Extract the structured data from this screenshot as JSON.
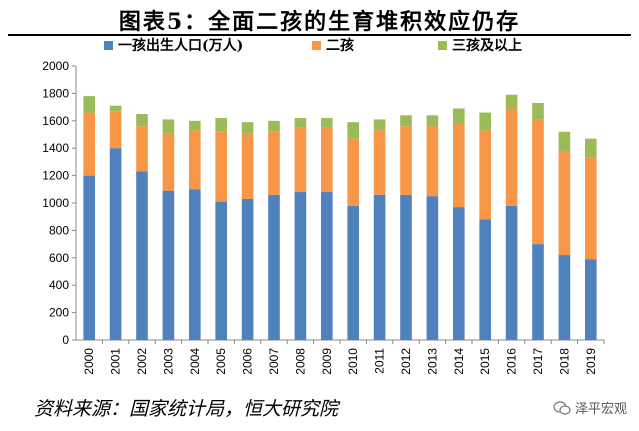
{
  "title": "图表5：全面二孩的生育堆积效应仍存",
  "source": "资料来源：国家统计局，恒大研究院",
  "watermark": "泽平宏观",
  "colors": {
    "first": "#4f81bd",
    "second": "#f79646",
    "third": "#9bbb59"
  },
  "chart_data": {
    "type": "bar",
    "stacked": true,
    "categories": [
      "2000",
      "2001",
      "2002",
      "2003",
      "2004",
      "2005",
      "2006",
      "2007",
      "2008",
      "2009",
      "2010",
      "2011",
      "2012",
      "2013",
      "2014",
      "2015",
      "2016",
      "2017",
      "2018",
      "2019"
    ],
    "series": [
      {
        "name": "一孩出生人口(万人)",
        "values": [
          1200,
          1400,
          1230,
          1090,
          1100,
          1010,
          1030,
          1060,
          1080,
          1080,
          980,
          1060,
          1060,
          1050,
          970,
          880,
          980,
          700,
          620,
          590
        ]
      },
      {
        "name": "二孩",
        "values": [
          460,
          270,
          330,
          420,
          430,
          510,
          480,
          460,
          470,
          470,
          490,
          470,
          500,
          510,
          610,
          650,
          710,
          910,
          760,
          740
        ]
      },
      {
        "name": "三孩及以上",
        "values": [
          120,
          40,
          90,
          100,
          70,
          100,
          80,
          80,
          70,
          70,
          120,
          80,
          80,
          80,
          110,
          130,
          100,
          120,
          140,
          140
        ]
      }
    ],
    "ylim": [
      0,
      2000
    ],
    "yticks": [
      0,
      200,
      400,
      600,
      800,
      1000,
      1200,
      1400,
      1600,
      1800,
      2000
    ],
    "legend_position": "top",
    "xlabel": "",
    "ylabel": ""
  }
}
